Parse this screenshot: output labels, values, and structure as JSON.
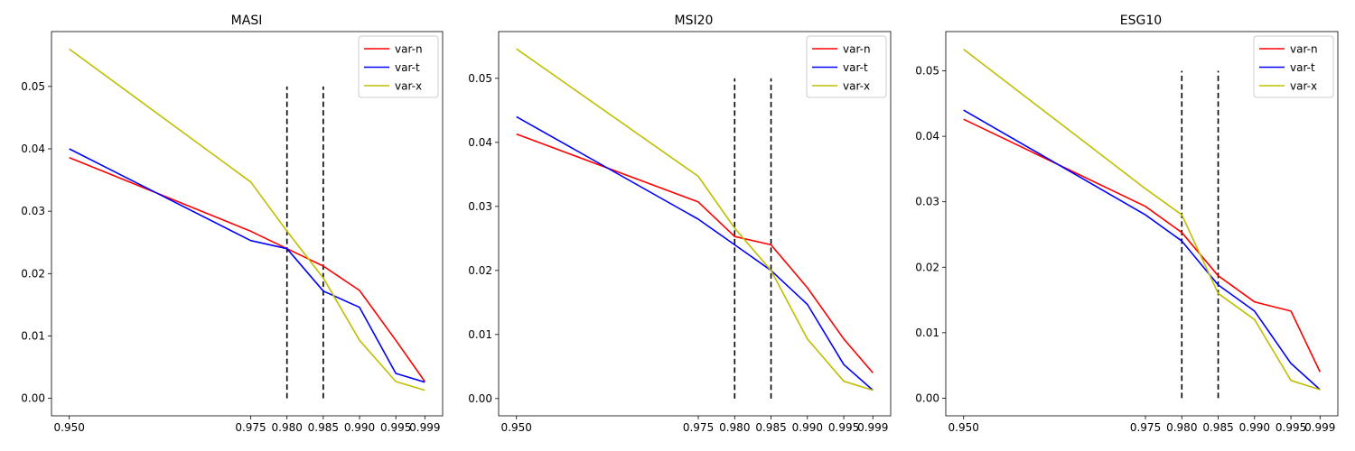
{
  "chart_data": [
    {
      "type": "line",
      "title": "MASI",
      "xlabel": "",
      "ylabel": "",
      "x": [
        0.95,
        0.975,
        0.98,
        0.985,
        0.99,
        0.995,
        0.999
      ],
      "xticks": [
        "0.950",
        "0.975",
        "0.980",
        "0.985",
        "0.990",
        "0.995",
        "0.999"
      ],
      "yticks": [
        "0.00",
        "0.01",
        "0.02",
        "0.03",
        "0.04",
        "0.05"
      ],
      "ylim": [
        -0.0028,
        0.0588
      ],
      "series": [
        {
          "name": "var-n",
          "color": "#ff0000",
          "values": [
            0.0386,
            0.0268,
            0.024,
            0.0212,
            0.0173,
            0.0093,
            0.0027
          ]
        },
        {
          "name": "var-t",
          "color": "#0000ff",
          "values": [
            0.04,
            0.0253,
            0.024,
            0.0172,
            0.0146,
            0.004,
            0.0026
          ]
        },
        {
          "name": "var-x",
          "color": "#bfbf00",
          "values": [
            0.056,
            0.0347,
            0.0268,
            0.0193,
            0.0093,
            0.0027,
            0.0013
          ]
        }
      ],
      "vlines": [
        0.98,
        0.985
      ],
      "vline_range": [
        0,
        0.05
      ],
      "legend": "top-right"
    },
    {
      "type": "line",
      "title": "MSI20",
      "xlabel": "",
      "ylabel": "",
      "x": [
        0.95,
        0.975,
        0.98,
        0.985,
        0.99,
        0.995,
        0.999
      ],
      "xticks": [
        "0.950",
        "0.975",
        "0.980",
        "0.985",
        "0.990",
        "0.995",
        "0.999"
      ],
      "yticks": [
        "0.00",
        "0.01",
        "0.02",
        "0.03",
        "0.04",
        "0.05"
      ],
      "ylim": [
        -0.0027,
        0.0573
      ],
      "series": [
        {
          "name": "var-n",
          "color": "#ff0000",
          "values": [
            0.0413,
            0.0307,
            0.0253,
            0.024,
            0.0173,
            0.0093,
            0.004
          ]
        },
        {
          "name": "var-t",
          "color": "#0000ff",
          "values": [
            0.044,
            0.028,
            0.024,
            0.02,
            0.0147,
            0.0053,
            0.0013
          ]
        },
        {
          "name": "var-x",
          "color": "#bfbf00",
          "values": [
            0.0546,
            0.0347,
            0.0266,
            0.02,
            0.0093,
            0.0027,
            0.0013
          ]
        }
      ],
      "vlines": [
        0.98,
        0.985
      ],
      "vline_range": [
        0,
        0.05
      ],
      "legend": "top-right"
    },
    {
      "type": "line",
      "title": "ESG10",
      "xlabel": "",
      "ylabel": "",
      "x": [
        0.95,
        0.975,
        0.98,
        0.985,
        0.99,
        0.995,
        0.999
      ],
      "xticks": [
        "0.950",
        "0.975",
        "0.980",
        "0.985",
        "0.990",
        "0.995",
        "0.999"
      ],
      "yticks": [
        "0.00",
        "0.01",
        "0.02",
        "0.03",
        "0.04",
        "0.05"
      ],
      "ylim": [
        -0.0027,
        0.056
      ],
      "series": [
        {
          "name": "var-n",
          "color": "#ff0000",
          "values": [
            0.0426,
            0.0293,
            0.0253,
            0.0187,
            0.0147,
            0.0133,
            0.004
          ]
        },
        {
          "name": "var-t",
          "color": "#0000ff",
          "values": [
            0.044,
            0.028,
            0.024,
            0.0173,
            0.0133,
            0.0053,
            0.0013
          ]
        },
        {
          "name": "var-x",
          "color": "#bfbf00",
          "values": [
            0.0533,
            0.032,
            0.028,
            0.016,
            0.012,
            0.0027,
            0.0013
          ]
        }
      ],
      "vlines": [
        0.98,
        0.985
      ],
      "vline_range": [
        0,
        0.05
      ],
      "legend": "top-right"
    }
  ]
}
